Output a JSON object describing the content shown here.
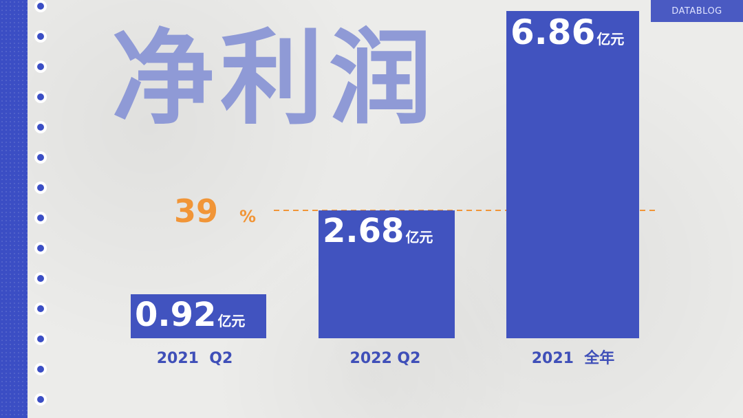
{
  "brand": {
    "label": "DATABLOG"
  },
  "chart_data": {
    "type": "bar",
    "title": "净利润",
    "unit": "亿元",
    "categories": [
      "2021  Q2",
      "2022 Q2",
      "2021  全年"
    ],
    "values": [
      0.92,
      2.68,
      6.86
    ],
    "value_labels": [
      "0.92",
      "2.68",
      "6.86"
    ],
    "ylim": [
      0,
      6.86
    ],
    "reference_line": {
      "value": 2.68,
      "label": "39",
      "suffix": "%",
      "style": "dashed",
      "color": "#f19537"
    },
    "bar_color": "#4153bf",
    "grid": false,
    "xlabel": "",
    "ylabel": ""
  }
}
